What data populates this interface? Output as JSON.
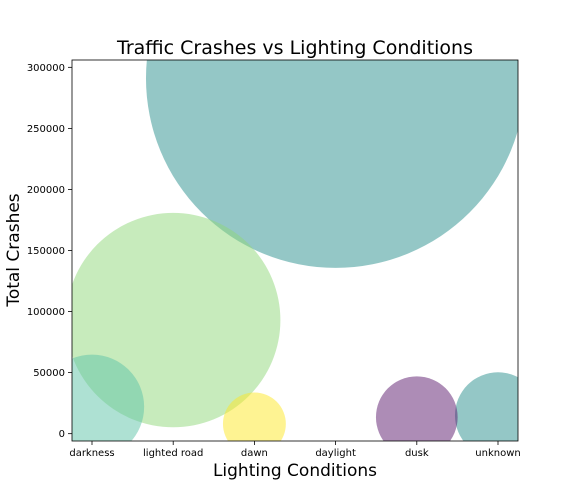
{
  "chart_data": {
    "type": "scatter",
    "title": "Traffic Crashes vs Lighting Conditions",
    "xlabel": "Lighting Conditions",
    "ylabel": "Total Crashes",
    "categories": [
      "darkness",
      "lighted road",
      "dawn",
      "daylight",
      "dusk",
      "unknown"
    ],
    "values": [
      22000,
      93000,
      8000,
      291000,
      13500,
      15000
    ],
    "ylim": [
      -6000,
      306000
    ],
    "yticks": [
      0,
      50000,
      100000,
      150000,
      200000,
      250000,
      300000
    ],
    "ytick_labels": [
      "0",
      "50000",
      "100000",
      "150000",
      "200000",
      "250000",
      "300000"
    ],
    "colors": [
      "#5ec4a8",
      "#8fd77a",
      "#fde725",
      "#2a8f8e",
      "#5b1a6e",
      "#2a8f8e"
    ],
    "marker_alpha": 0.5,
    "grid": false,
    "legend": "none",
    "bubble_size_encodes": "total crashes"
  }
}
